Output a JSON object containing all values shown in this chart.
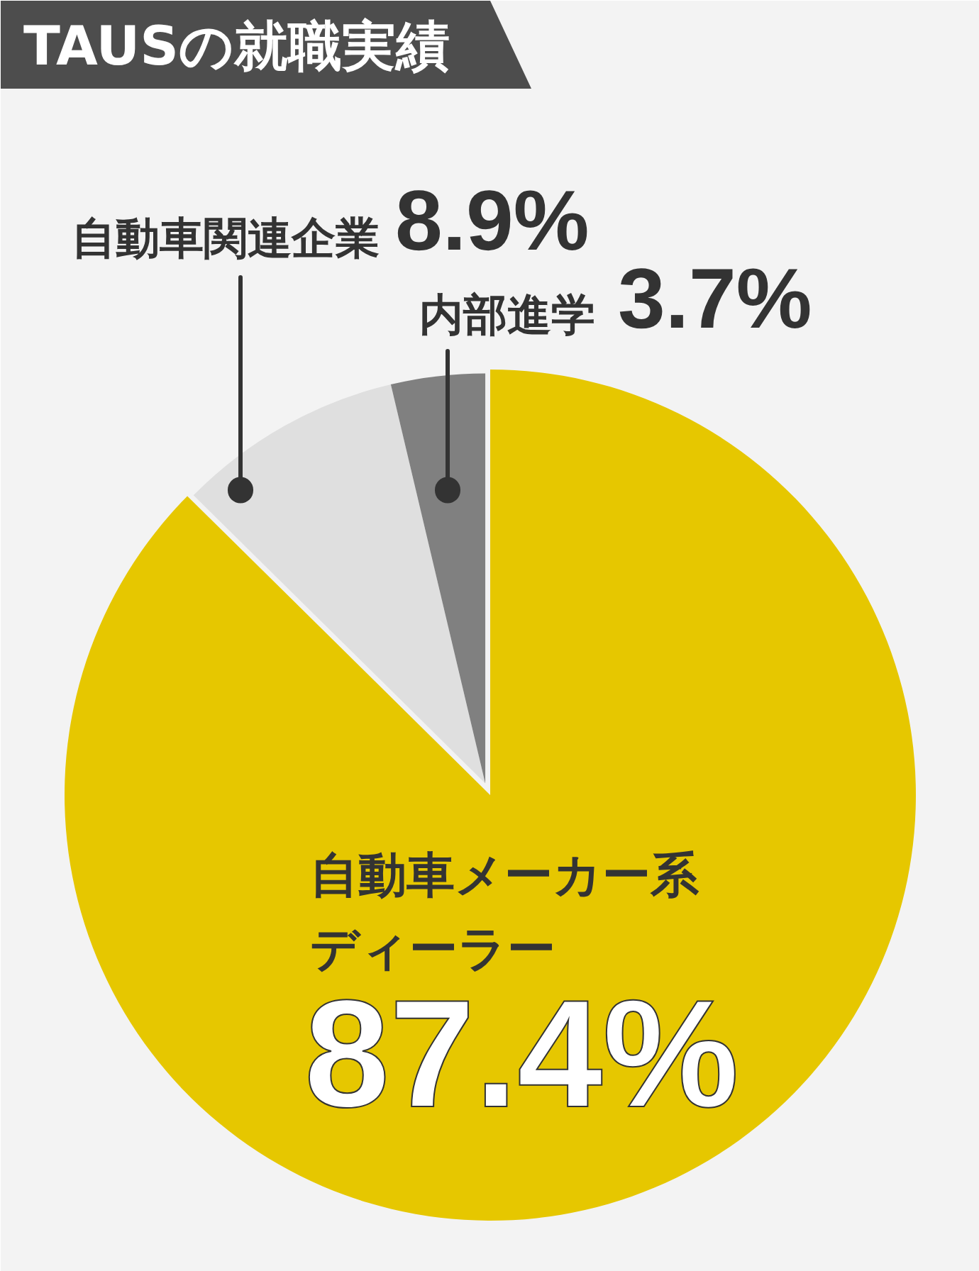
{
  "chart_data": {
    "type": "pie",
    "title": "TAUSの就職実績",
    "categories": [
      "自動車メーカー系ディーラー",
      "自動車関連企業",
      "内部進学"
    ],
    "values": [
      87.4,
      8.9,
      3.7
    ],
    "colors": [
      "#e6c700",
      "#dfdfdf",
      "#808080"
    ],
    "value_labels": [
      "87.4%",
      "8.9%",
      "3.7%"
    ]
  }
}
